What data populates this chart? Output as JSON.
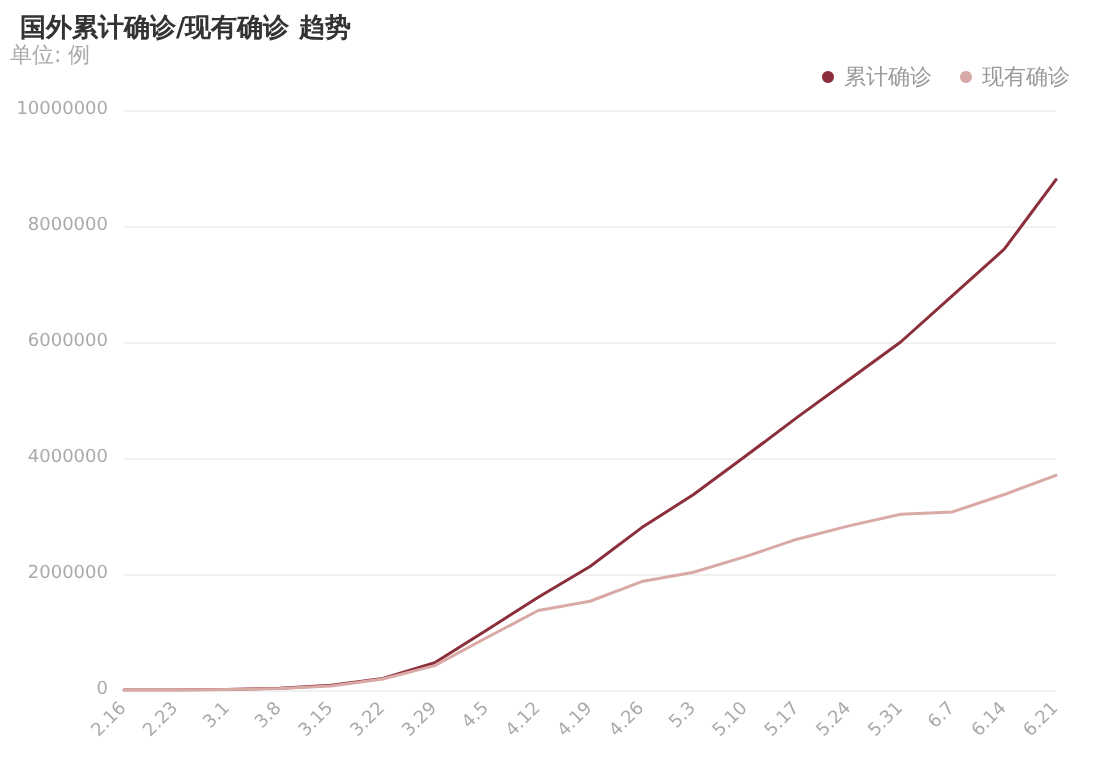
{
  "chart_data": {
    "type": "line",
    "title": "国外累计确诊/现有确诊 趋势",
    "ylabel": "单位: 例",
    "categories": [
      "2.16",
      "2.23",
      "3.1",
      "3.8",
      "3.15",
      "3.22",
      "3.29",
      "4.5",
      "4.12",
      "4.19",
      "4.26",
      "5.3",
      "5.10",
      "5.17",
      "5.24",
      "5.31",
      "6.7",
      "6.14",
      "6.21"
    ],
    "series": [
      {
        "name": "累计确诊",
        "color": "#8b2f3c",
        "values": [
          0,
          0,
          10000,
          30000,
          80000,
          200000,
          470000,
          1030000,
          1600000,
          2130000,
          2800000,
          3370000,
          4030000,
          4700000,
          5350000,
          6000000,
          6800000,
          7600000,
          8800000
        ]
      },
      {
        "name": "现有确诊",
        "color": "#d9a9a6",
        "values": [
          0,
          0,
          8000,
          25000,
          70000,
          190000,
          420000,
          900000,
          1370000,
          1530000,
          1870000,
          2030000,
          2300000,
          2600000,
          2830000,
          3030000,
          3070000,
          3370000,
          3700000
        ]
      }
    ],
    "ylim": [
      0,
      10000000
    ],
    "yticks": [
      0,
      2000000,
      4000000,
      6000000,
      8000000,
      10000000
    ],
    "grid": "y",
    "legend": "top right",
    "marker": "none",
    "line_style": "solid"
  }
}
